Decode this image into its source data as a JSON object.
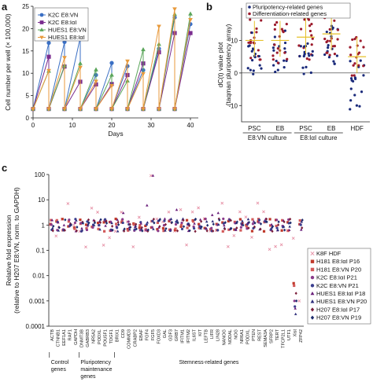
{
  "chart_data": [
    {
      "panel": "a",
      "type": "line",
      "xlabel": "Days",
      "ylabel": "Cell number per well (× 100,000)",
      "xlim": [
        0,
        42
      ],
      "ylim": [
        0,
        25
      ],
      "xticks": [
        0,
        10,
        20,
        30,
        40
      ],
      "yticks": [
        0,
        5,
        10,
        15,
        20,
        25
      ],
      "legend_position": "top-left",
      "series": [
        {
          "name": "K2C E8:VN",
          "color": "#3a6fc4",
          "marker": "circle",
          "x": [
            0,
            4,
            4,
            8,
            8,
            12,
            12,
            16,
            16,
            20,
            20,
            24,
            24,
            28,
            28,
            32,
            32,
            36,
            36,
            40
          ],
          "y": [
            2,
            16.8,
            2,
            17,
            2,
            18,
            2,
            9.6,
            2,
            12.3,
            2,
            11.6,
            2,
            10.7,
            2,
            15.5,
            2,
            22.5,
            2,
            21
          ]
        },
        {
          "name": "K2C E8:IαI",
          "color": "#7a2c8f",
          "marker": "square",
          "x": [
            0,
            4,
            4,
            8,
            8,
            12,
            12,
            16,
            16,
            20,
            20,
            24,
            24,
            28,
            28,
            32,
            32,
            36,
            36,
            40
          ],
          "y": [
            2,
            13.7,
            2,
            11.5,
            2,
            8.1,
            2,
            7.5,
            2,
            7.6,
            2,
            9.6,
            2,
            12.2,
            2,
            14.7,
            2,
            19,
            2,
            19
          ]
        },
        {
          "name": "HUES1 E8:VN",
          "color": "#5aa55a",
          "marker": "triangle-up",
          "x": [
            0,
            4,
            4,
            8,
            8,
            12,
            12,
            16,
            16,
            20,
            20,
            24,
            24,
            28,
            28,
            32,
            32,
            36,
            36,
            40
          ],
          "y": [
            2,
            10.5,
            2,
            11.7,
            2,
            12.2,
            2,
            10.8,
            2,
            9.6,
            2,
            8.3,
            2,
            15.3,
            2,
            16.5,
            2,
            23.2,
            2,
            23.3
          ]
        },
        {
          "name": "HUES1 E8:IαI",
          "color": "#e89a3c",
          "marker": "triangle-down",
          "x": [
            0,
            4,
            4,
            8,
            8,
            12,
            12,
            16,
            16,
            20,
            20,
            24,
            24,
            28,
            28,
            32,
            32,
            36,
            36,
            40
          ],
          "y": [
            2,
            10.6,
            2,
            13.5,
            2,
            11.3,
            2,
            8.2,
            2,
            7.2,
            2,
            12.7,
            2,
            9.9,
            2,
            20.5,
            2,
            24.4,
            2,
            22
          ]
        }
      ]
    },
    {
      "panel": "b",
      "type": "scatter",
      "ylabel": "dC(t) value plot\n(taqman pluripotency array)",
      "ylim": [
        -15,
        20
      ],
      "yticks": [
        -10,
        0,
        10
      ],
      "categories": [
        "PSC",
        "EB",
        "PSC",
        "EB",
        "HDF"
      ],
      "group_labels": [
        "E8:VN culture",
        "E8:IαI culture"
      ],
      "legend_position": "top",
      "series": [
        {
          "name": "Pluripotency-related genes",
          "color": "#1a2a7a"
        },
        {
          "name": "Differentiation-related genes",
          "color": "#9c1b2c"
        }
      ],
      "median_line_color": "#e6c12a"
    },
    {
      "panel": "c",
      "type": "scatter",
      "ylabel": "Relative fold expression\n(relative to H207 E8:VN, norm. to GAPDH)",
      "yscale": "log",
      "ylim": [
        0.0001,
        100
      ],
      "yticks": [
        "0.0001",
        "0.001",
        "0.01",
        "0.1",
        "1",
        "10",
        "100"
      ],
      "legend_position": "right",
      "categories": [
        "ACTB",
        "CTNNB1",
        "EEF1A1",
        "RAF1",
        "GAPDH",
        "DNMT3B",
        "GABRB3",
        "NR5A2",
        "PODXL",
        "POU5F1",
        "TDGF1",
        "BRIX1",
        "CD9",
        "COMMD3",
        "CRABP2",
        "EBAF",
        "FGF4",
        "FGF5",
        "FOXD3",
        "GAL",
        "GDF3",
        "GRB7",
        "IFITM1",
        "IFITM2",
        "IL6ST",
        "KIT",
        "LEFTB",
        "LIFR",
        "LIN28",
        "NANOG",
        "NODAL",
        "NOG",
        "NR6A1",
        "PODXL",
        "PTEN",
        "REST",
        "SEMA3A",
        "SFRP2",
        "TERT",
        "TFCP2L1",
        "UTF1",
        "Xist",
        "ZFP42"
      ],
      "groups": [
        {
          "label": "Control\ngenes",
          "from": 0,
          "to": 4
        },
        {
          "label": "Pluripotency\nmaintenance\ngenes",
          "from": 5,
          "to": 10
        },
        {
          "label": "Stemness-related genes",
          "from": 11,
          "to": 42
        }
      ],
      "series": [
        {
          "name": "K8F HDF",
          "color": "#e58aa0",
          "marker": "cross"
        },
        {
          "name": "H181 E8:IαI P16",
          "color": "#c0392b",
          "marker": "square"
        },
        {
          "name": "H181 E8:VN P20",
          "color": "#d35a5a",
          "marker": "square"
        },
        {
          "name": "K2C E8:IαI P21",
          "color": "#8a3a8a",
          "marker": "circle"
        },
        {
          "name": "K2C E8:VN P21",
          "color": "#3b3f8f",
          "marker": "circle"
        },
        {
          "name": "HUES1 E8:IαI P18",
          "color": "#6a1f7a",
          "marker": "triangle-up"
        },
        {
          "name": "HUES1 E8:VN P20",
          "color": "#2c2c7a",
          "marker": "triangle-up"
        },
        {
          "name": "H207 E8:IαI P17",
          "color": "#7b1e3a",
          "marker": "diamond"
        },
        {
          "name": "H207 E8:VN P19",
          "color": "#1b2a6b",
          "marker": "diamond"
        }
      ],
      "approx_values_relative": "most genes near 1; notable highs: FGF5 ~90 (HDF), GRB7 ~4, LIN28 ~3; lows: Xist 0.0003–0.005, ZFP42 ~0.001"
    }
  ],
  "panels": {
    "a": "a",
    "b": "b",
    "c": "c"
  }
}
